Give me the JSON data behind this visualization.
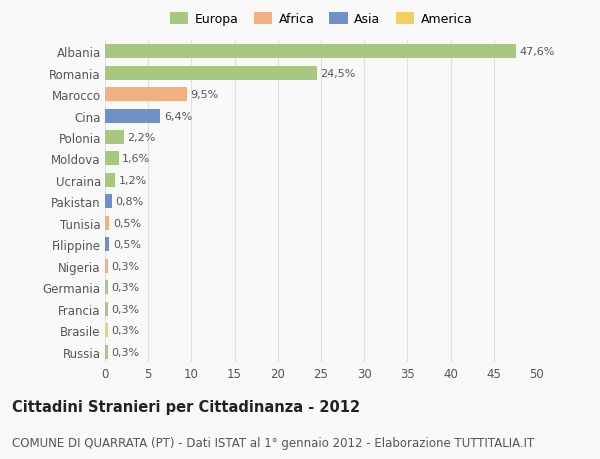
{
  "categories": [
    "Albania",
    "Romania",
    "Marocco",
    "Cina",
    "Polonia",
    "Moldova",
    "Ucraina",
    "Pakistan",
    "Tunisia",
    "Filippine",
    "Nigeria",
    "Germania",
    "Francia",
    "Brasile",
    "Russia"
  ],
  "values": [
    47.6,
    24.5,
    9.5,
    6.4,
    2.2,
    1.6,
    1.2,
    0.8,
    0.5,
    0.5,
    0.3,
    0.3,
    0.3,
    0.3,
    0.3
  ],
  "labels": [
    "47,6%",
    "24,5%",
    "9,5%",
    "6,4%",
    "2,2%",
    "1,6%",
    "1,2%",
    "0,8%",
    "0,5%",
    "0,5%",
    "0,3%",
    "0,3%",
    "0,3%",
    "0,3%",
    "0,3%"
  ],
  "continents": [
    "Europa",
    "Europa",
    "Africa",
    "Asia",
    "Europa",
    "Europa",
    "Europa",
    "Asia",
    "Africa",
    "Asia",
    "Africa",
    "Europa",
    "Europa",
    "America",
    "Europa"
  ],
  "continent_colors": {
    "Europa": "#a8c880",
    "Africa": "#f0b080",
    "Asia": "#7090c8",
    "America": "#f0d060"
  },
  "legend_order": [
    "Europa",
    "Africa",
    "Asia",
    "America"
  ],
  "title": "Cittadini Stranieri per Cittadinanza - 2012",
  "subtitle": "COMUNE DI QUARRATA (PT) - Dati ISTAT al 1° gennaio 2012 - Elaborazione TUTTITALIA.IT",
  "xlim": [
    0,
    50
  ],
  "xticks": [
    0,
    5,
    10,
    15,
    20,
    25,
    30,
    35,
    40,
    45,
    50
  ],
  "background_color": "#f9f9f9",
  "grid_color": "#e0e0e0",
  "bar_height": 0.65,
  "title_fontsize": 10.5,
  "subtitle_fontsize": 8.5,
  "tick_fontsize": 8.5,
  "label_fontsize": 8,
  "legend_fontsize": 9
}
